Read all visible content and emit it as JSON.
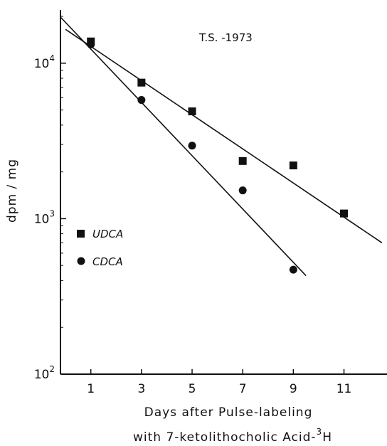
{
  "chart_data": {
    "type": "scatter",
    "title": "",
    "annotation": "T.S. -1973",
    "xlabel_line1": "Days after Pulse-labeling",
    "xlabel_line2_prefix": "with 7-ketolithocholic Acid-",
    "xlabel_line2_sup": "3",
    "xlabel_line2_suffix": "H",
    "ylabel": "dpm / mg",
    "y_scale": "log",
    "xlim": [
      -0.2,
      12.7
    ],
    "ylim": [
      100,
      22000
    ],
    "x_ticks": [
      1,
      3,
      5,
      7,
      9,
      11
    ],
    "x_tick_labels": [
      "1",
      "3",
      "5",
      "7",
      "9",
      "11"
    ],
    "y_ticks": [
      {
        "value": 10000,
        "base": "10",
        "exp": "4"
      },
      {
        "value": 1000,
        "base": "10",
        "exp": "3"
      },
      {
        "value": 100,
        "base": "10",
        "exp": "2"
      }
    ],
    "grid": false,
    "legend_position": "left-middle",
    "series": [
      {
        "name": "UDCA",
        "marker": "square",
        "x": [
          1,
          3,
          5,
          7,
          9,
          11
        ],
        "y": [
          13800,
          7500,
          4900,
          2350,
          2200,
          1080
        ],
        "fit_line": {
          "x": [
            0,
            12.5
          ],
          "y": [
            16500,
            700
          ]
        }
      },
      {
        "name": "CDCA",
        "marker": "circle",
        "x": [
          1,
          3,
          5,
          7,
          9
        ],
        "y": [
          13200,
          5800,
          2950,
          1520,
          470
        ],
        "fit_line": {
          "x": [
            -0.2,
            9.5
          ],
          "y": [
            19800,
            430
          ]
        }
      }
    ],
    "color": "#111111"
  }
}
